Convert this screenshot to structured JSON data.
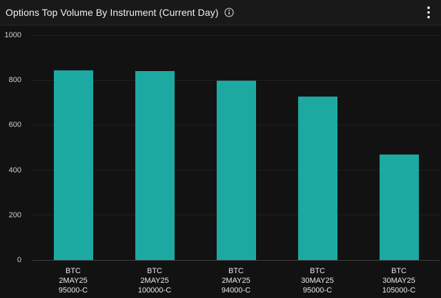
{
  "header": {
    "title": "Options Top Volume By Instrument (Current Day)",
    "icons": {
      "info": "info-circle",
      "menu": "vertical-ellipsis"
    }
  },
  "colors": {
    "background": "#121212",
    "header_background": "#191919",
    "separator": "#292929",
    "bar": "#1CA9A1",
    "gridline": "#212121",
    "axis_line": "#3E3E3E",
    "y_tick_text": "#CFCFCF",
    "x_tick_text": "#E8E8E8",
    "title_text": "#F2F2F2"
  },
  "chart_data": {
    "type": "bar",
    "title": "Options Top Volume By Instrument (Current Day)",
    "categories": [
      "BTC 2MAY25 95000-C",
      "BTC 2MAY25 100000-C",
      "BTC 2MAY25 94000-C",
      "BTC 30MAY25 95000-C",
      "BTC 30MAY25 105000-C"
    ],
    "category_lines": [
      [
        "BTC",
        "2MAY25",
        "95000-C"
      ],
      [
        "BTC",
        "2MAY25",
        "100000-C"
      ],
      [
        "BTC",
        "2MAY25",
        "94000-C"
      ],
      [
        "BTC",
        "30MAY25",
        "95000-C"
      ],
      [
        "BTC",
        "30MAY25",
        "105000-C"
      ]
    ],
    "values": [
      845,
      842,
      798,
      726,
      469
    ],
    "xlabel": "",
    "ylabel": "",
    "ylim": [
      0,
      1000
    ],
    "yticks": [
      0,
      200,
      400,
      600,
      800,
      1000
    ],
    "grid": true,
    "legend": false,
    "bar_color": "#1CA9A1"
  }
}
